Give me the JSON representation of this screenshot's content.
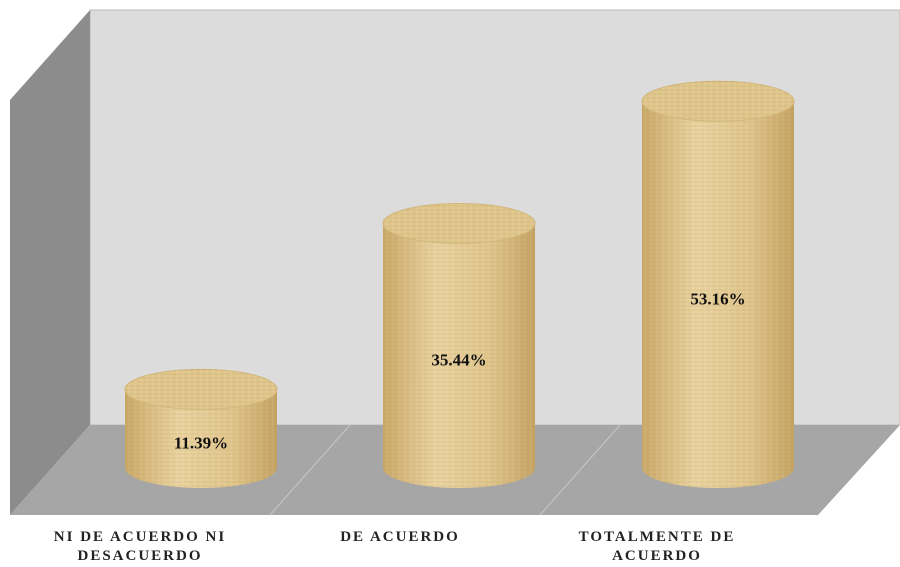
{
  "chart_data": {
    "type": "cylinder",
    "categories": [
      "NI DE ACUERDO NI DESACUERDO",
      "DE ACUERDO",
      "TOTALMENTE DE ACUERDO"
    ],
    "values": [
      11.39,
      35.44,
      53.16
    ],
    "value_labels": [
      "11.39%",
      "35.44%",
      "53.16%"
    ],
    "color": "#e0c68c"
  }
}
